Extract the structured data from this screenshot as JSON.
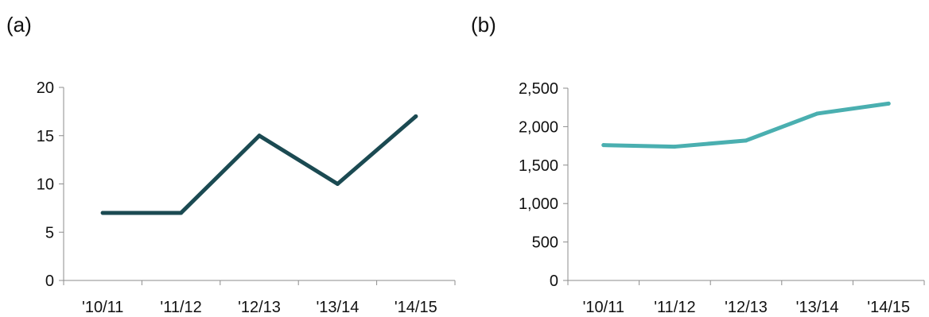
{
  "chart_data": [
    {
      "panel_label": "(a)",
      "type": "line",
      "categories": [
        "'10/11",
        "'11/12",
        "'12/13",
        "'13/14",
        "'14/15"
      ],
      "values": [
        7,
        7,
        15,
        10,
        17
      ],
      "ylim": [
        0,
        20
      ],
      "yticks": [
        0,
        5,
        10,
        15,
        20
      ],
      "ytick_labels": [
        "0",
        "5",
        "10",
        "15",
        "20"
      ],
      "color": "#1b4a52",
      "grid": false
    },
    {
      "panel_label": "(b)",
      "type": "line",
      "categories": [
        "'10/11",
        "'11/12",
        "'12/13",
        "'13/14",
        "'14/15"
      ],
      "values": [
        1760,
        1740,
        1820,
        2170,
        2300
      ],
      "ylim": [
        0,
        2500
      ],
      "yticks": [
        0,
        500,
        1000,
        1500,
        2000,
        2500
      ],
      "ytick_labels": [
        "0",
        "500",
        "1,000",
        "1,500",
        "2,000",
        "2,500"
      ],
      "color": "#4aafb0",
      "grid": false
    }
  ]
}
